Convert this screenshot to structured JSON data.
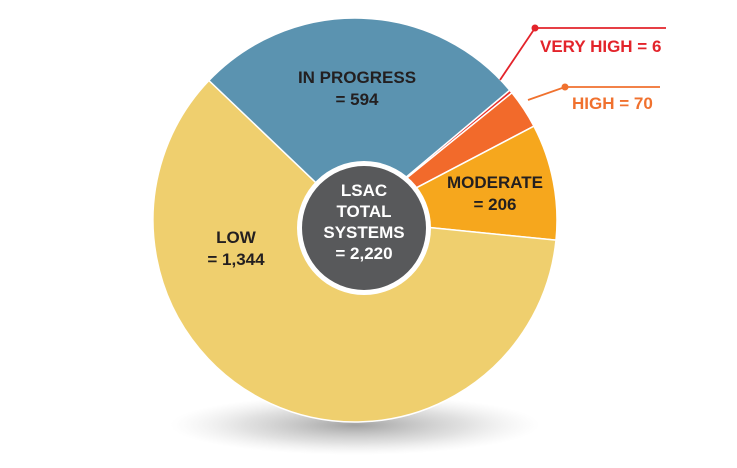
{
  "chart_data": {
    "type": "pie",
    "title": "",
    "center_label": [
      "LSAC",
      "TOTAL",
      "SYSTEMS",
      "= 2,220"
    ],
    "slices": [
      {
        "name": "VERY HIGH",
        "value": 6,
        "label": "VERY HIGH = 6",
        "color": "#e8302a",
        "label_color": "#e3242b"
      },
      {
        "name": "HIGH",
        "value": 70,
        "label": "HIGH = 70",
        "color": "#f26a2b",
        "label_color": "#f0712e"
      },
      {
        "name": "MODERATE",
        "value": 206,
        "label_lines": [
          "MODERATE",
          "= 206"
        ],
        "color": "#f6a71d",
        "label_color": "#231f20"
      },
      {
        "name": "LOW",
        "value": 1344,
        "label_lines": [
          "LOW",
          "= 1,344"
        ],
        "color": "#efcf6e",
        "label_color": "#231f20"
      },
      {
        "name": "IN PROGRESS",
        "value": 594,
        "label_lines": [
          "IN PROGRESS",
          "= 594"
        ],
        "color": "#5b93b0",
        "label_color": "#231f20"
      }
    ],
    "center_color": "#58595b",
    "center_text_color": "#ffffff"
  }
}
